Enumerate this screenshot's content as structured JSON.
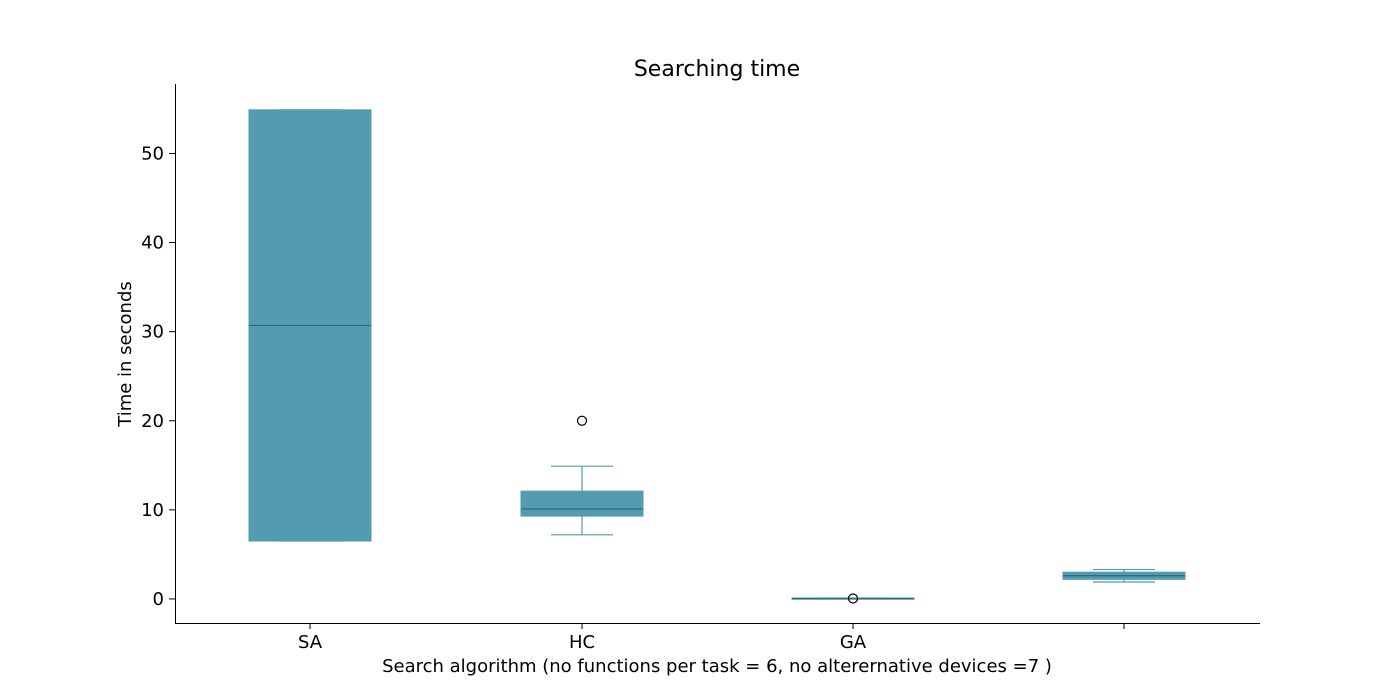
{
  "chart_data": {
    "type": "box",
    "title": "Searching time",
    "xlabel": "Search algorithm (no functions per task = 6, no alterernative devices =7 )",
    "ylabel": "Time in seconds",
    "categories": [
      "SA",
      "HC",
      "GA",
      ""
    ],
    "ylim": [
      -2.7,
      57.8
    ],
    "yticks": [
      0,
      10,
      20,
      30,
      40,
      50
    ],
    "grid": false,
    "colors": {
      "box": "#529bb0",
      "median": "#2c6878",
      "whisker": "#529bb0",
      "outlier": "#000000"
    },
    "boxes": [
      {
        "category": "SA",
        "q1": 6.5,
        "median": 30.7,
        "q3": 54.9,
        "whisker_low": 6.5,
        "whisker_high": 54.9,
        "outliers": []
      },
      {
        "category": "HC",
        "q1": 9.3,
        "median": 10.1,
        "q3": 12.1,
        "whisker_low": 7.2,
        "whisker_high": 14.9,
        "outliers": [
          20.0
        ]
      },
      {
        "category": "GA",
        "q1": 0.0,
        "median": 0.05,
        "q3": 0.1,
        "whisker_low": 0.0,
        "whisker_high": 0.1,
        "outliers": [
          0.05
        ]
      },
      {
        "category": "",
        "q1": 2.2,
        "median": 2.6,
        "q3": 3.0,
        "whisker_low": 1.9,
        "whisker_high": 3.3,
        "outliers": []
      }
    ]
  }
}
